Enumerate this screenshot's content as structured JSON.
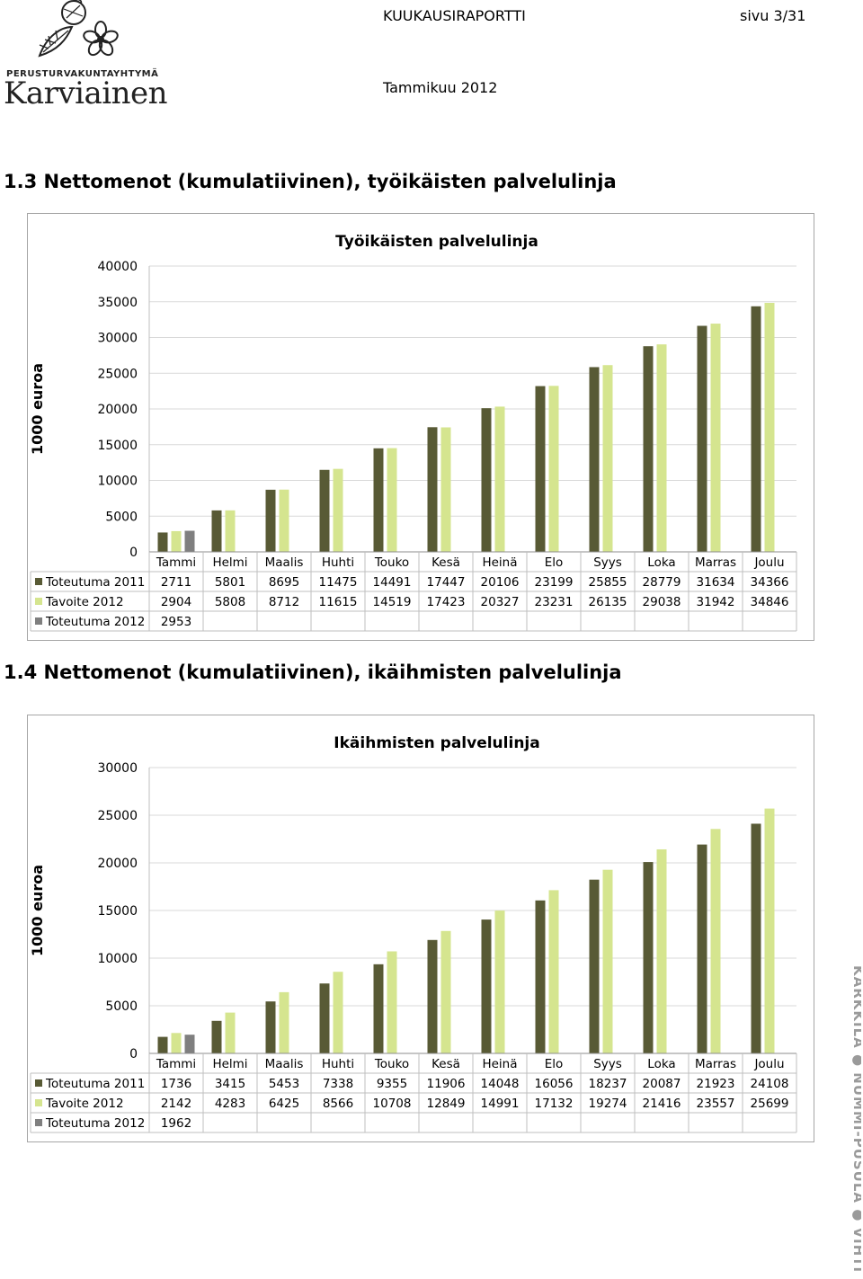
{
  "header": {
    "report_title": "KUUKAUSIRAPORTTI",
    "page": "sivu 3/31",
    "date": "Tammikuu 2012",
    "org_line": "PERUSTURVAKUNTAYHTYMÄ",
    "org_name": "Karviainen"
  },
  "side_text": "KARKKILA ● NUMMI-PUSULA ● VIHTI",
  "colors": {
    "toteutuma_2011": "#585a35",
    "tavoite_2012": "#d5e58f",
    "toteutuma_2012": "#7f7f7f",
    "gridline": "#d9d9d9",
    "border": "#a6a6a6"
  },
  "sections": [
    {
      "title": "1.3   Nettomenot (kumulatiivinen), työikäisten palvelulinja"
    },
    {
      "title": "1.4   Nettomenot (kumulatiivinen), ikäihmisten palvelulinja"
    }
  ],
  "chart_data": [
    {
      "type": "bar",
      "title": "Työikäisten palvelulinja",
      "ylabel": "1000 euroa",
      "xlabel": "",
      "ylim": [
        0,
        40000
      ],
      "yticks": [
        0,
        5000,
        10000,
        15000,
        20000,
        25000,
        30000,
        35000,
        40000
      ],
      "grid": true,
      "legend": "data-table-below",
      "categories": [
        "Tammi",
        "Helmi",
        "Maalis",
        "Huhti",
        "Touko",
        "Kesä",
        "Heinä",
        "Elo",
        "Syys",
        "Loka",
        "Marras",
        "Joulu"
      ],
      "series": [
        {
          "name": "Toteutuma 2011",
          "color": "#585a35",
          "values": [
            2711,
            5801,
            8695,
            11475,
            14491,
            17447,
            20106,
            23199,
            25855,
            28779,
            31634,
            34366
          ]
        },
        {
          "name": "Tavoite 2012",
          "color": "#d5e58f",
          "values": [
            2904,
            5808,
            8712,
            11615,
            14519,
            17423,
            20327,
            23231,
            26135,
            29038,
            31942,
            34846
          ]
        },
        {
          "name": "Toteutuma 2012",
          "color": "#7f7f7f",
          "values": [
            2953,
            null,
            null,
            null,
            null,
            null,
            null,
            null,
            null,
            null,
            null,
            null
          ]
        }
      ]
    },
    {
      "type": "bar",
      "title": "Ikäihmisten palvelulinja",
      "ylabel": "1000 euroa",
      "xlabel": "",
      "ylim": [
        0,
        30000
      ],
      "yticks": [
        0,
        5000,
        10000,
        15000,
        20000,
        25000,
        30000
      ],
      "grid": true,
      "legend": "data-table-below",
      "categories": [
        "Tammi",
        "Helmi",
        "Maalis",
        "Huhti",
        "Touko",
        "Kesä",
        "Heinä",
        "Elo",
        "Syys",
        "Loka",
        "Marras",
        "Joulu"
      ],
      "series": [
        {
          "name": "Toteutuma 2011",
          "color": "#585a35",
          "values": [
            1736,
            3415,
            5453,
            7338,
            9355,
            11906,
            14048,
            16056,
            18237,
            20087,
            21923,
            24108
          ]
        },
        {
          "name": "Tavoite 2012",
          "color": "#d5e58f",
          "values": [
            2142,
            4283,
            6425,
            8566,
            10708,
            12849,
            14991,
            17132,
            19274,
            21416,
            23557,
            25699
          ]
        },
        {
          "name": "Toteutuma 2012",
          "color": "#7f7f7f",
          "values": [
            1962,
            null,
            null,
            null,
            null,
            null,
            null,
            null,
            null,
            null,
            null,
            null
          ]
        }
      ]
    }
  ]
}
